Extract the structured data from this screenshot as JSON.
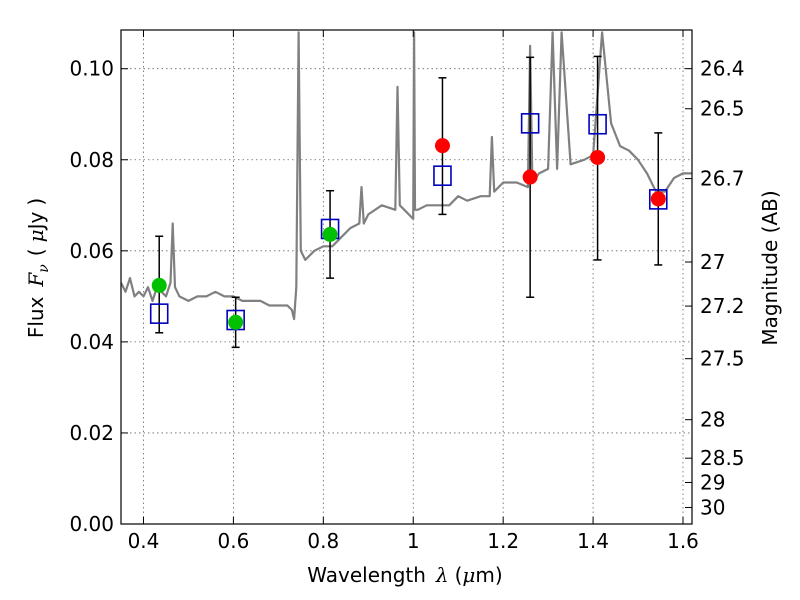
{
  "chart_data": {
    "type": "scatter",
    "title": "",
    "xlabel": {
      "prefix": "Wavelength",
      "symbol": "λ",
      "unit_open": "(",
      "mu": "μ",
      "unit_rest": "m)"
    },
    "ylabel": {
      "prefix": "Flux",
      "symbol_main": "F",
      "symbol_sub": "ν",
      "unit_open": "(",
      "mu": "μ",
      "unit_rest": "Jy",
      "unit_close": ")"
    },
    "y2label": "Magnitude (AB)",
    "xlim": [
      0.35,
      1.62
    ],
    "ylim": [
      0.0,
      0.1085
    ],
    "grid": true,
    "x_ticks": [
      {
        "v": 0.4,
        "label": "0.4"
      },
      {
        "v": 0.6,
        "label": "0.6"
      },
      {
        "v": 0.8,
        "label": "0.8"
      },
      {
        "v": 1.0,
        "label": "1"
      },
      {
        "v": 1.2,
        "label": "1.2"
      },
      {
        "v": 1.4,
        "label": "1.4"
      },
      {
        "v": 1.6,
        "label": "1.6"
      }
    ],
    "y_ticks": [
      {
        "v": 0.0,
        "label": "0.00"
      },
      {
        "v": 0.02,
        "label": "0.02"
      },
      {
        "v": 0.04,
        "label": "0.04"
      },
      {
        "v": 0.06,
        "label": "0.06"
      },
      {
        "v": 0.08,
        "label": "0.08"
      },
      {
        "v": 0.1,
        "label": "0.10"
      }
    ],
    "mag_ticks": [
      {
        "mag": 26.4,
        "label": "26.4"
      },
      {
        "mag": 26.5,
        "label": "26.5"
      },
      {
        "mag": 26.7,
        "label": "26.7"
      },
      {
        "mag": 27,
        "label": "27"
      },
      {
        "mag": 27.2,
        "label": "27.2"
      },
      {
        "mag": 27.5,
        "label": "27.5"
      },
      {
        "mag": 28,
        "label": "28"
      },
      {
        "mag": 28.5,
        "label": "28.5"
      },
      {
        "mag": 29,
        "label": "29"
      },
      {
        "mag": 30,
        "label": "30"
      }
    ],
    "colors": {
      "sed": "#808080",
      "green": "#00c000",
      "red": "#ff0000",
      "model_box": "#0000c0",
      "errorbar": "#000000",
      "grid": "#666666"
    },
    "series": [
      {
        "kind": "line",
        "x": [
          0.35,
          0.36,
          0.37,
          0.38,
          0.39,
          0.4,
          0.41,
          0.42,
          0.43,
          0.44,
          0.45,
          0.46,
          0.465,
          0.47,
          0.48,
          0.5,
          0.52,
          0.54,
          0.56,
          0.58,
          0.6,
          0.62,
          0.64,
          0.66,
          0.68,
          0.7,
          0.72,
          0.73,
          0.735,
          0.74,
          0.745,
          0.75,
          0.76,
          0.78,
          0.8,
          0.82,
          0.84,
          0.86,
          0.88,
          0.885,
          0.89,
          0.9,
          0.93,
          0.96,
          0.965,
          0.97,
          0.98,
          1.0,
          1.002,
          1.004,
          1.01,
          1.03,
          1.05,
          1.08,
          1.1,
          1.12,
          1.15,
          1.17,
          1.175,
          1.18,
          1.2,
          1.23,
          1.255,
          1.26,
          1.265,
          1.28,
          1.3,
          1.31,
          1.32,
          1.33,
          1.35,
          1.38,
          1.4,
          1.42,
          1.44,
          1.46,
          1.48,
          1.5,
          1.52,
          1.54,
          1.56,
          1.58,
          1.6,
          1.62
        ],
        "y": [
          0.053,
          0.051,
          0.054,
          0.05,
          0.051,
          0.05,
          0.052,
          0.049,
          0.052,
          0.051,
          0.05,
          0.053,
          0.066,
          0.052,
          0.05,
          0.049,
          0.05,
          0.05,
          0.051,
          0.05,
          0.05,
          0.049,
          0.049,
          0.049,
          0.048,
          0.048,
          0.048,
          0.047,
          0.045,
          0.052,
          0.108,
          0.06,
          0.058,
          0.06,
          0.061,
          0.061,
          0.063,
          0.065,
          0.066,
          0.074,
          0.066,
          0.068,
          0.07,
          0.069,
          0.096,
          0.07,
          0.069,
          0.067,
          0.108,
          0.069,
          0.069,
          0.07,
          0.07,
          0.07,
          0.072,
          0.071,
          0.072,
          0.072,
          0.085,
          0.073,
          0.075,
          0.075,
          0.074,
          0.105,
          0.075,
          0.077,
          0.078,
          0.108,
          0.078,
          0.108,
          0.079,
          0.08,
          0.081,
          0.108,
          0.088,
          0.083,
          0.082,
          0.08,
          0.077,
          0.073,
          0.073,
          0.076,
          0.077,
          0.077
        ]
      },
      {
        "kind": "model",
        "x": [
          0.435,
          0.605,
          0.815,
          1.065,
          1.26,
          1.41,
          1.545
        ],
        "y": [
          0.0462,
          0.0448,
          0.0648,
          0.0765,
          0.088,
          0.0878,
          0.0713
        ]
      },
      {
        "kind": "green",
        "x": [
          0.435,
          0.605,
          0.815
        ],
        "y": [
          0.0524,
          0.0443,
          0.0636
        ],
        "err_lo": [
          0.042,
          0.0388,
          0.054
        ],
        "err_hi": [
          0.0632,
          0.0498,
          0.0732
        ]
      },
      {
        "kind": "red",
        "x": [
          1.065,
          1.26,
          1.41,
          1.545
        ],
        "y": [
          0.0831,
          0.0762,
          0.0805,
          0.0714
        ],
        "err_lo": [
          0.068,
          0.0498,
          0.058,
          0.0569
        ],
        "err_hi": [
          0.098,
          0.1025,
          0.1027,
          0.0859
        ]
      }
    ]
  }
}
